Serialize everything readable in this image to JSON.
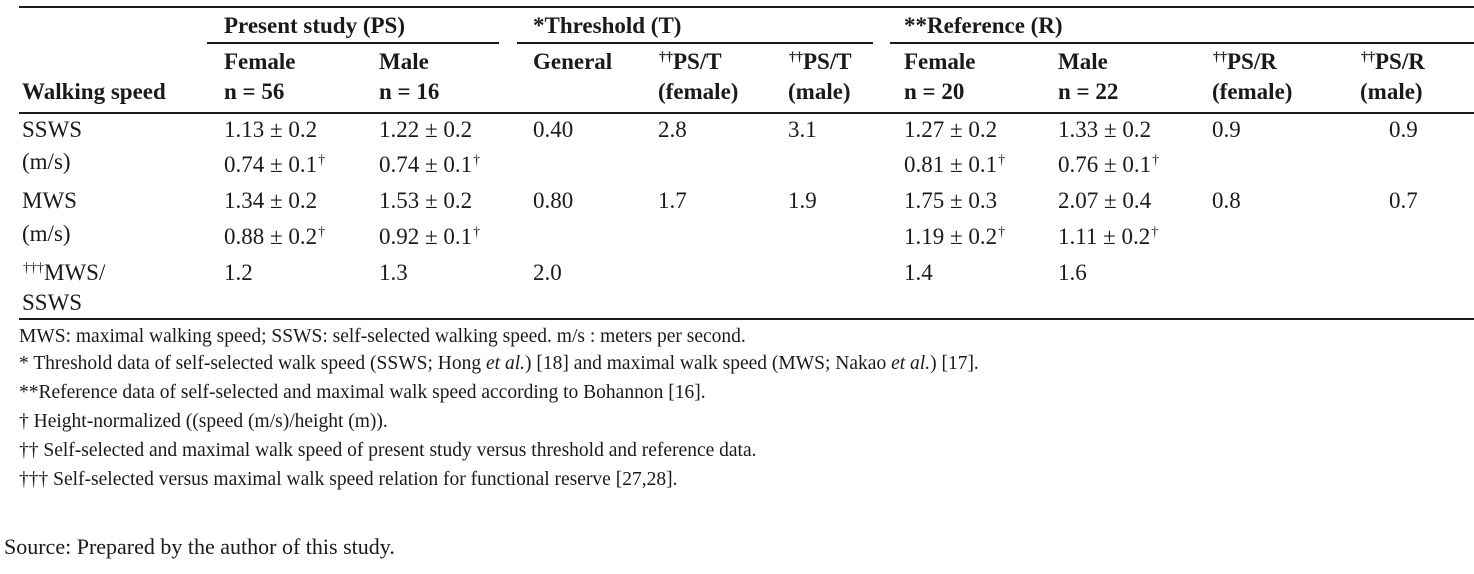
{
  "table": {
    "groups": {
      "present": "Present study (PS)",
      "threshold": "*Threshold (T)",
      "reference": "**Reference (R)"
    },
    "headers": {
      "walking_speed": "Walking speed",
      "ps_female_1": "Female",
      "ps_female_2": "n = 56",
      "ps_male_1": "Male",
      "ps_male_2": "n = 16",
      "t_general": "General",
      "pst_f_mark": "††",
      "pst_f_1": "PS/T",
      "pst_f_2": "(female)",
      "pst_m_mark": "††",
      "pst_m_1": "PS/T",
      "pst_m_2": "(male)",
      "r_female_1": "Female",
      "r_female_2": "n = 20",
      "r_male_1": "Male",
      "r_male_2": "n = 22",
      "psr_f_mark": "††",
      "psr_f_1": "PS/R",
      "psr_f_2": "(female)",
      "psr_m_mark": "††",
      "psr_m_1": "PS/R",
      "psr_m_2": "(male)"
    },
    "rows": [
      {
        "label1": "SSWS",
        "label2": "(m/s)",
        "ps_female": "1.13 ± 0.2",
        "ps_female_norm": "0.74 ± 0.1",
        "ps_male": "1.22 ± 0.2",
        "ps_male_norm": "0.74 ± 0.1",
        "t_general": "0.40",
        "pst_female": "2.8",
        "pst_male": "3.1",
        "r_female": "1.27 ± 0.2",
        "r_female_norm": "0.81 ± 0.1",
        "r_male": "1.33 ± 0.2",
        "r_male_norm": "0.76 ± 0.1",
        "psr_female": "0.9",
        "psr_male": "0.9"
      },
      {
        "label1": "MWS",
        "label2": "(m/s)",
        "ps_female": "1.34 ± 0.2",
        "ps_female_norm": "0.88 ± 0.2",
        "ps_male": "1.53 ± 0.2",
        "ps_male_norm": "0.92 ± 0.1",
        "t_general": "0.80",
        "pst_female": "1.7",
        "pst_male": "1.9",
        "r_female": "1.75 ± 0.3",
        "r_female_norm": "1.19 ± 0.2",
        "r_male": "2.07 ± 0.4",
        "r_male_norm": "1.11 ± 0.2",
        "psr_female": "0.8",
        "psr_male": "0.7"
      },
      {
        "label_mark": "†††",
        "label1": "MWS/",
        "label2": "SSWS",
        "ps_female": "1.2",
        "ps_male": "1.3",
        "t_general": "2.0",
        "r_female": "1.4",
        "r_male": "1.6"
      }
    ],
    "dagger": "†",
    "footnotes": [
      "MWS: maximal walking speed; SSWS: self-selected walking speed. m/s : meters per second.",
      "* Threshold data of self-selected walk speed (SSWS; Hong ",
      "et al.",
      ") [18] and maximal walk speed (MWS; Nakao ",
      "et al.",
      ") [17].",
      "**Reference data of self-selected and maximal walk speed according to Bohannon [16].",
      "† Height-normalized ((speed (m/s)/height (m)).",
      "†† Self-selected and maximal walk speed of present study versus threshold and reference data.",
      "††† Self-selected versus maximal walk speed relation for functional reserve [27,28]."
    ],
    "source": "Source: Prepared by the author of this study."
  }
}
